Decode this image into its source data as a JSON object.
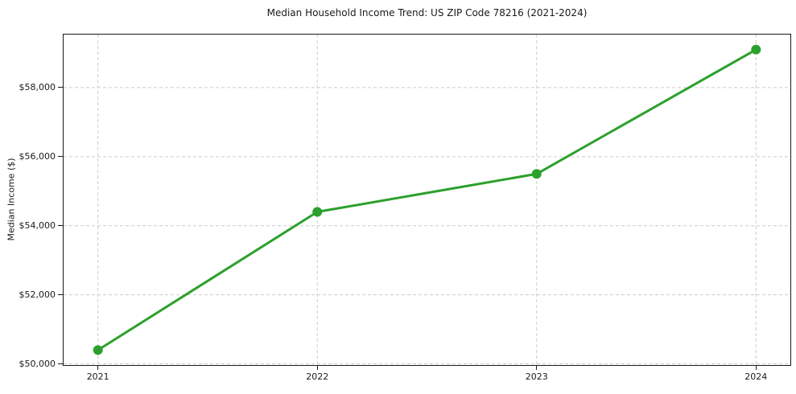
{
  "chart_data": {
    "type": "line",
    "title": "Median Household Income Trend: US ZIP Code 78216 (2021-2024)",
    "xlabel": "",
    "ylabel": "Median Income ($)",
    "x": [
      "2021",
      "2022",
      "2023",
      "2024"
    ],
    "series": [
      {
        "name": "Median Household Income",
        "values": [
          50400,
          54400,
          55500,
          59100
        ]
      }
    ],
    "ylim": [
      49965,
      59535
    ],
    "yticks": [
      50000,
      52000,
      54000,
      56000,
      58000
    ],
    "ytick_labels": [
      "$50,000",
      "$52,000",
      "$54,000",
      "$56,000",
      "$58,000"
    ],
    "xtick_labels": [
      "2021",
      "2022",
      "2023",
      "2024"
    ],
    "grid": true,
    "grid_style": "dashed",
    "legend_position": "none",
    "marker": "circle"
  },
  "colors": {
    "line": "#2ca02c",
    "marker": "#2ca02c",
    "grid": "#cccccc",
    "axis": "#1a1a1a",
    "text": "#1a1a1a",
    "background": "#ffffff"
  }
}
